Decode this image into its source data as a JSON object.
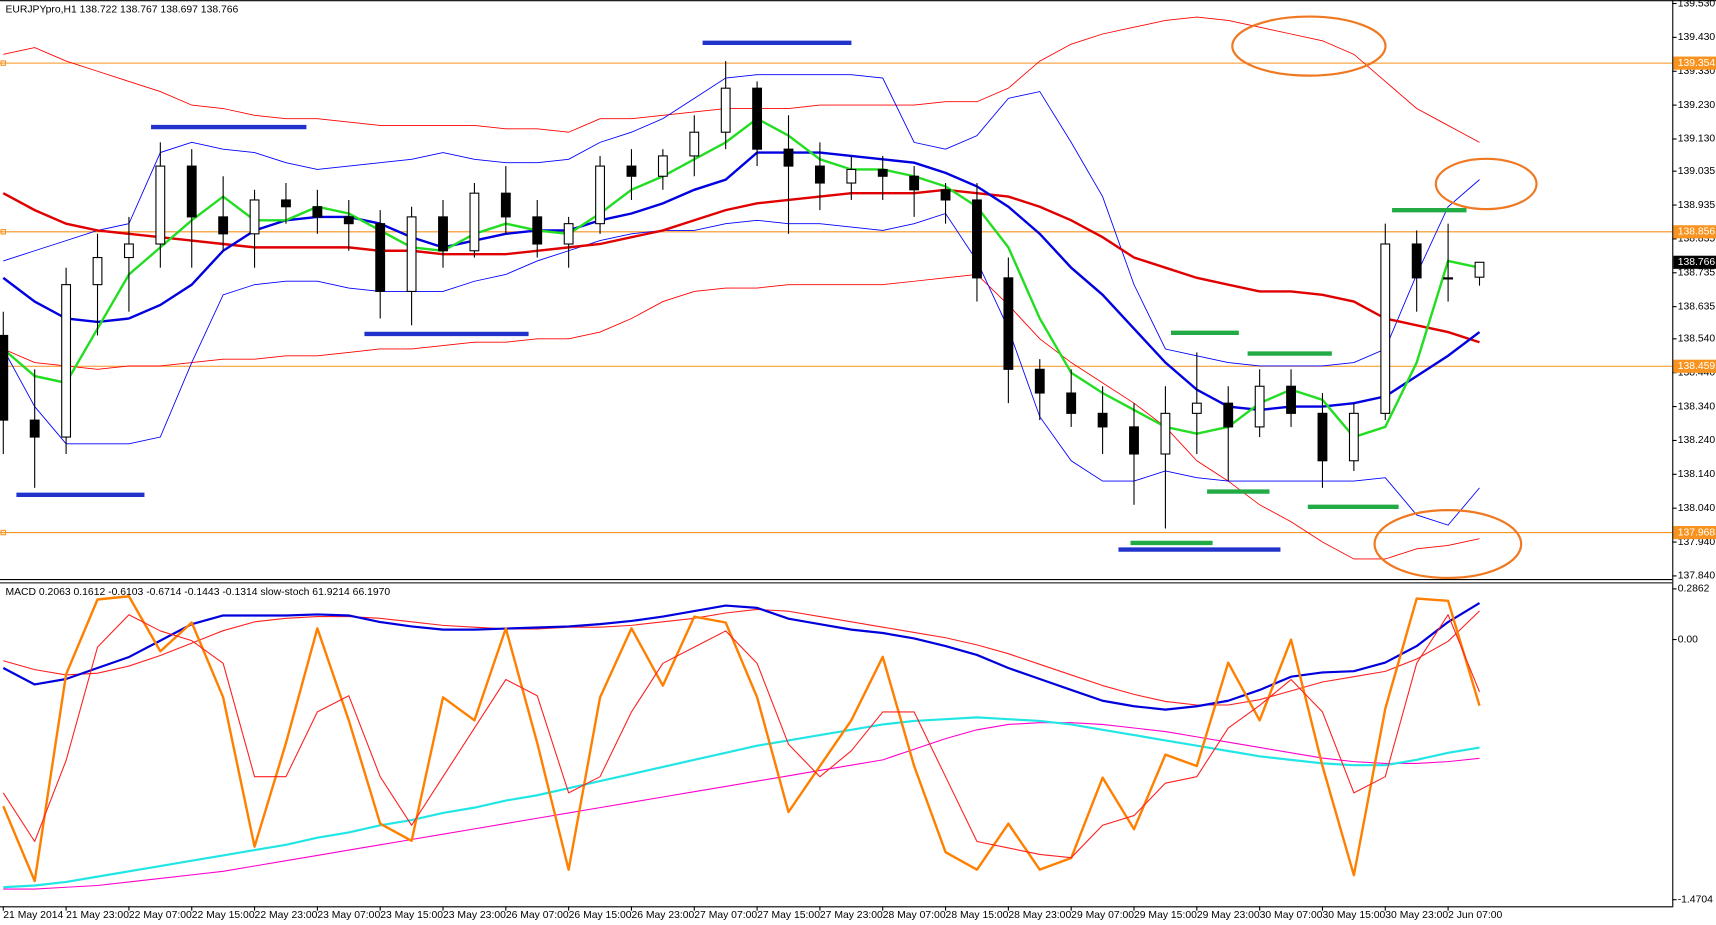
{
  "chart_data": [
    {
      "type": "candlestick",
      "title": "EURJPYpro,H1  138.722 138.767 138.697 138.766",
      "open": [
        138.55,
        138.3,
        138.25,
        138.7,
        138.78,
        138.82,
        139.05,
        138.9,
        138.85,
        138.95,
        138.93,
        138.9,
        138.88,
        138.68,
        138.9,
        138.8,
        138.97,
        138.9,
        138.82,
        138.88,
        139.05,
        139.02,
        139.08,
        139.15,
        139.28,
        139.1,
        139.05,
        139.0,
        139.04,
        139.02,
        138.98,
        138.95,
        138.72,
        138.45,
        138.38,
        138.32,
        138.28,
        138.2,
        138.32,
        138.35,
        138.28,
        138.4,
        138.32,
        138.18,
        138.32,
        138.82,
        138.72,
        138.722
      ],
      "high": [
        138.62,
        138.45,
        138.75,
        138.85,
        138.9,
        139.12,
        139.1,
        139.02,
        138.98,
        139.0,
        138.98,
        138.95,
        138.92,
        138.93,
        138.95,
        139.0,
        139.05,
        138.95,
        138.9,
        139.08,
        139.1,
        139.1,
        139.2,
        139.36,
        139.3,
        139.2,
        139.12,
        139.08,
        139.08,
        139.05,
        139.0,
        139.0,
        138.78,
        138.48,
        138.45,
        138.4,
        138.35,
        138.4,
        138.5,
        138.4,
        138.45,
        138.45,
        138.38,
        138.35,
        138.88,
        138.86,
        138.88,
        138.767
      ],
      "low": [
        138.2,
        138.1,
        138.2,
        138.55,
        138.62,
        138.75,
        138.75,
        138.8,
        138.75,
        138.88,
        138.85,
        138.8,
        138.6,
        138.58,
        138.75,
        138.78,
        138.85,
        138.78,
        138.75,
        138.85,
        138.95,
        138.98,
        139.02,
        139.1,
        139.05,
        138.85,
        138.92,
        138.95,
        138.95,
        138.9,
        138.88,
        138.65,
        138.35,
        138.3,
        138.28,
        138.2,
        138.05,
        137.98,
        138.2,
        138.12,
        138.25,
        138.28,
        138.1,
        138.15,
        138.3,
        138.62,
        138.65,
        138.697
      ],
      "close": [
        138.3,
        138.25,
        138.7,
        138.78,
        138.82,
        139.05,
        138.9,
        138.85,
        138.95,
        138.93,
        138.9,
        138.88,
        138.68,
        138.9,
        138.8,
        138.97,
        138.9,
        138.82,
        138.88,
        139.05,
        139.02,
        139.08,
        139.15,
        139.28,
        139.1,
        139.05,
        139.0,
        139.04,
        139.02,
        138.98,
        138.95,
        138.72,
        138.45,
        138.38,
        138.32,
        138.28,
        138.2,
        138.32,
        138.35,
        138.28,
        138.4,
        138.32,
        138.18,
        138.32,
        138.82,
        138.72,
        138.72,
        138.766
      ],
      "series": [
        {
          "color": "#ff0000",
          "width": 0.8,
          "values": [
            139.38,
            139.4,
            139.36,
            139.33,
            139.3,
            139.27,
            139.23,
            139.22,
            139.2,
            139.19,
            139.19,
            139.18,
            139.17,
            139.17,
            139.17,
            139.17,
            139.16,
            139.16,
            139.15,
            139.19,
            139.19,
            139.2,
            139.21,
            139.22,
            139.22,
            139.22,
            139.23,
            139.23,
            139.23,
            139.23,
            139.24,
            139.24,
            139.28,
            139.36,
            139.41,
            139.44,
            139.46,
            139.48,
            139.49,
            139.48,
            139.46,
            139.44,
            139.42,
            139.38,
            139.3,
            139.22,
            139.17,
            139.12
          ]
        },
        {
          "color": "#ff0000",
          "width": 0.8,
          "values": [
            138.51,
            138.47,
            138.46,
            138.45,
            138.46,
            138.46,
            138.47,
            138.48,
            138.48,
            138.49,
            138.49,
            138.5,
            138.51,
            138.51,
            138.52,
            138.53,
            138.53,
            138.54,
            138.54,
            138.56,
            138.6,
            138.65,
            138.68,
            138.69,
            138.69,
            138.7,
            138.7,
            138.7,
            138.7,
            138.71,
            138.72,
            138.73,
            138.64,
            138.54,
            138.47,
            138.41,
            138.35,
            138.28,
            138.18,
            138.12,
            138.05,
            138.0,
            137.94,
            137.89,
            137.89,
            137.92,
            137.93,
            137.95
          ]
        },
        {
          "color": "#0000ff",
          "width": 0.8,
          "values": [
            138.77,
            138.8,
            138.83,
            138.86,
            138.88,
            139.09,
            139.12,
            139.1,
            139.09,
            139.06,
            139.04,
            139.05,
            139.06,
            139.07,
            139.09,
            139.07,
            139.06,
            139.06,
            139.07,
            139.12,
            139.15,
            139.19,
            139.25,
            139.31,
            139.32,
            139.32,
            139.32,
            139.32,
            139.31,
            139.12,
            139.1,
            139.14,
            139.25,
            139.27,
            139.12,
            138.96,
            138.7,
            138.51,
            138.49,
            138.47,
            138.46,
            138.46,
            138.46,
            138.47,
            138.51,
            138.73,
            138.93,
            139.01
          ]
        },
        {
          "color": "#0000ff",
          "width": 0.8,
          "values": [
            138.51,
            138.34,
            138.23,
            138.23,
            138.23,
            138.25,
            138.47,
            138.67,
            138.7,
            138.71,
            138.71,
            138.69,
            138.68,
            138.68,
            138.68,
            138.71,
            138.73,
            138.77,
            138.8,
            138.83,
            138.85,
            138.86,
            138.86,
            138.88,
            138.89,
            138.88,
            138.88,
            138.87,
            138.86,
            138.88,
            138.91,
            138.77,
            138.57,
            138.31,
            138.18,
            138.12,
            138.12,
            138.15,
            138.13,
            138.12,
            138.12,
            138.12,
            138.12,
            138.12,
            138.13,
            138.02,
            137.99,
            138.1
          ]
        },
        {
          "color": "#e00000",
          "width": 2.2,
          "values": [
            138.97,
            138.92,
            138.88,
            138.86,
            138.85,
            138.84,
            138.83,
            138.82,
            138.81,
            138.81,
            138.81,
            138.81,
            138.8,
            138.8,
            138.79,
            138.79,
            138.79,
            138.8,
            138.81,
            138.82,
            138.84,
            138.86,
            138.89,
            138.92,
            138.94,
            138.95,
            138.96,
            138.97,
            138.97,
            138.97,
            138.98,
            138.97,
            138.96,
            138.93,
            138.89,
            138.84,
            138.78,
            138.75,
            138.72,
            138.7,
            138.68,
            138.68,
            138.67,
            138.65,
            138.6,
            138.58,
            138.56,
            138.53
          ]
        },
        {
          "color": "#0000e0",
          "width": 2.2,
          "values": [
            138.72,
            138.65,
            138.6,
            138.59,
            138.6,
            138.64,
            138.7,
            138.8,
            138.86,
            138.89,
            138.9,
            138.9,
            138.88,
            138.84,
            138.81,
            138.83,
            138.85,
            138.86,
            138.86,
            138.89,
            138.91,
            138.94,
            138.98,
            139.01,
            139.09,
            139.09,
            139.09,
            139.08,
            139.07,
            139.06,
            139.03,
            138.99,
            138.93,
            138.85,
            138.75,
            138.67,
            138.57,
            138.47,
            138.39,
            138.34,
            138.33,
            138.34,
            138.34,
            138.35,
            138.37,
            138.43,
            138.49,
            138.56
          ]
        },
        {
          "color": "#22dd22",
          "width": 2.2,
          "values": [
            138.51,
            138.43,
            138.41,
            138.57,
            138.73,
            138.81,
            138.89,
            138.96,
            138.89,
            138.89,
            138.93,
            138.91,
            138.86,
            138.81,
            138.8,
            138.85,
            138.88,
            138.86,
            138.85,
            138.91,
            138.98,
            139.02,
            139.07,
            139.12,
            139.19,
            139.14,
            139.07,
            139.04,
            139.04,
            139.02,
            138.99,
            138.93,
            138.81,
            138.6,
            138.44,
            138.38,
            138.33,
            138.28,
            138.26,
            138.28,
            138.35,
            138.39,
            138.36,
            138.25,
            138.28,
            138.47,
            138.77,
            138.75
          ]
        }
      ],
      "levels": [
        {
          "value": 139.354
        },
        {
          "value": 138.856
        },
        {
          "value": 138.459
        },
        {
          "value": 137.968
        }
      ],
      "level_color": "#f7931e",
      "ylim": [
        137.834,
        139.54
      ],
      "yticks": [
        {
          "value": 139.53,
          "label": "139.530"
        },
        {
          "value": 139.43,
          "label": "139.430"
        },
        {
          "value": 139.33,
          "label": "139.330"
        },
        {
          "value": 139.23,
          "label": "139.230"
        },
        {
          "value": 139.13,
          "label": "139.130"
        },
        139.035,
        138.935,
        138.835,
        138.735,
        138.635,
        {
          "value": 138.54,
          "label": "138.540"
        },
        {
          "value": 138.44,
          "label": "138.440"
        },
        {
          "value": 138.34,
          "label": "138.340"
        },
        {
          "value": 138.24,
          "label": "138.240"
        },
        {
          "value": 138.14,
          "label": "138.140"
        },
        {
          "value": 138.04,
          "label": "138.040"
        },
        {
          "value": 137.94,
          "label": "137.940"
        },
        {
          "value": 137.84,
          "label": "137.840"
        }
      ]
    },
    {
      "type": "macd",
      "title": "MACD 0.2063 0.1612 -0.6103 -0.6714 -0.1443 -0.1314  slow-stoch 61.9214 66.1970",
      "categories": [
        "21 May 2014",
        null,
        "21 May 23:00",
        null,
        "22 May 07:00",
        null,
        "22 May 15:00",
        null,
        "22 May 23:00",
        null,
        "23 May 07:00",
        null,
        "23 May 15:00",
        null,
        "23 May 23:00",
        null,
        "26 May 07:00",
        null,
        "26 May 15:00",
        null,
        "26 May 23:00",
        null,
        "27 May 07:00",
        null,
        "27 May 15:00",
        null,
        "27 May 23:00",
        null,
        "28 May 07:00",
        null,
        "28 May 15:00",
        null,
        "28 May 23:00",
        null,
        "29 May 07:00",
        null,
        "29 May 15:00",
        null,
        "29 May 23:00",
        null,
        "30 May 07:00",
        null,
        "30 May 15:00",
        null,
        "30 May 23:00",
        null,
        "2 Jun 07:00",
        null
      ],
      "series": [
        {
          "color": "#ff00cc",
          "width": 1,
          "values": [
            -1.41,
            -1.41,
            -1.4,
            -1.39,
            -1.37,
            -1.35,
            -1.33,
            -1.31,
            -1.28,
            -1.25,
            -1.22,
            -1.19,
            -1.16,
            -1.13,
            -1.1,
            -1.07,
            -1.04,
            -1.01,
            -0.98,
            -0.95,
            -0.92,
            -0.89,
            -0.86,
            -0.83,
            -0.8,
            -0.77,
            -0.74,
            -0.71,
            -0.68,
            -0.62,
            -0.56,
            -0.51,
            -0.48,
            -0.47,
            -0.47,
            -0.48,
            -0.5,
            -0.52,
            -0.55,
            -0.58,
            -0.61,
            -0.64,
            -0.67,
            -0.69,
            -0.7,
            -0.7,
            -0.69,
            -0.6714
          ]
        },
        {
          "color": "#22e5e5",
          "width": 2,
          "values": [
            -1.4,
            -1.39,
            -1.37,
            -1.34,
            -1.31,
            -1.28,
            -1.25,
            -1.22,
            -1.19,
            -1.16,
            -1.12,
            -1.09,
            -1.05,
            -1.02,
            -0.98,
            -0.95,
            -0.91,
            -0.88,
            -0.84,
            -0.8,
            -0.76,
            -0.72,
            -0.68,
            -0.64,
            -0.6,
            -0.57,
            -0.54,
            -0.51,
            -0.48,
            -0.46,
            -0.45,
            -0.44,
            -0.45,
            -0.46,
            -0.48,
            -0.51,
            -0.54,
            -0.57,
            -0.6,
            -0.63,
            -0.66,
            -0.68,
            -0.7,
            -0.71,
            -0.71,
            -0.68,
            -0.64,
            -0.6103
          ]
        },
        {
          "color": "#ff2020",
          "width": 1,
          "values": [
            -0.12,
            -0.17,
            -0.2,
            -0.19,
            -0.15,
            -0.09,
            -0.02,
            0.05,
            0.1,
            0.12,
            0.13,
            0.13,
            0.12,
            0.1,
            0.08,
            0.07,
            0.06,
            0.06,
            0.07,
            0.07,
            0.08,
            0.1,
            0.12,
            0.15,
            0.17,
            0.16,
            0.13,
            0.1,
            0.07,
            0.04,
            0.01,
            -0.03,
            -0.08,
            -0.14,
            -0.2,
            -0.26,
            -0.31,
            -0.35,
            -0.37,
            -0.37,
            -0.34,
            -0.29,
            -0.24,
            -0.21,
            -0.18,
            -0.11,
            -0.01,
            0.1612
          ]
        },
        {
          "color": "#0000dd",
          "width": 2,
          "values": [
            -0.161,
            -0.254,
            -0.223,
            -0.161,
            -0.099,
            -0.006,
            0.087,
            0.136,
            0.136,
            0.136,
            0.142,
            0.136,
            0.099,
            0.074,
            0.056,
            0.056,
            0.062,
            0.068,
            0.074,
            0.087,
            0.105,
            0.13,
            0.161,
            0.192,
            0.179,
            0.118,
            0.087,
            0.056,
            0.037,
            0.006,
            -0.037,
            -0.087,
            -0.161,
            -0.223,
            -0.285,
            -0.346,
            -0.377,
            -0.396,
            -0.377,
            -0.346,
            -0.285,
            -0.21,
            -0.186,
            -0.179,
            -0.13,
            -0.037,
            0.099,
            0.2063
          ]
        },
        {
          "color": "#ff8000",
          "width": 2.2,
          "axis": "y2",
          "values": [
            30.9,
            7.8,
            71.6,
            94.7,
            95.7,
            78.7,
            87.6,
            64.5,
            18.4,
            50.4,
            85.8,
            57.4,
            25.5,
            20.2,
            64.5,
            57.4,
            85.8,
            50.4,
            11.3,
            64.5,
            85.8,
            68.1,
            89.4,
            87.6,
            64.5,
            29.1,
            43.3,
            57.4,
            77.0,
            43.3,
            16.7,
            11.3,
            25.5,
            11.3,
            14.9,
            39.7,
            23.8,
            46.8,
            43.3,
            75.2,
            57.4,
            82.3,
            43.3,
            9.6,
            61.0,
            95.0,
            94.3,
            61.9214
          ]
        },
        {
          "color": "#ff2020",
          "width": 1,
          "axis": "y2",
          "values": [
            35,
            20,
            45,
            80,
            90,
            85,
            82,
            75,
            40,
            40,
            60,
            65,
            40,
            25,
            40,
            55,
            70,
            65,
            35,
            40,
            60,
            75,
            80,
            85,
            75,
            50,
            40,
            48,
            60,
            60,
            40,
            20,
            18,
            16,
            15,
            25,
            28,
            38,
            40,
            55,
            62,
            70,
            60,
            35,
            40,
            75,
            90,
            66.197
          ]
        }
      ],
      "ylim": [
        -1.5075,
        0.3233
      ],
      "yticks": [
        0.2862,
        {
          "value": 0,
          "label": "0.00"
        },
        -1.4704
      ],
      "y2lim": [
        0,
        100
      ]
    }
  ]
}
